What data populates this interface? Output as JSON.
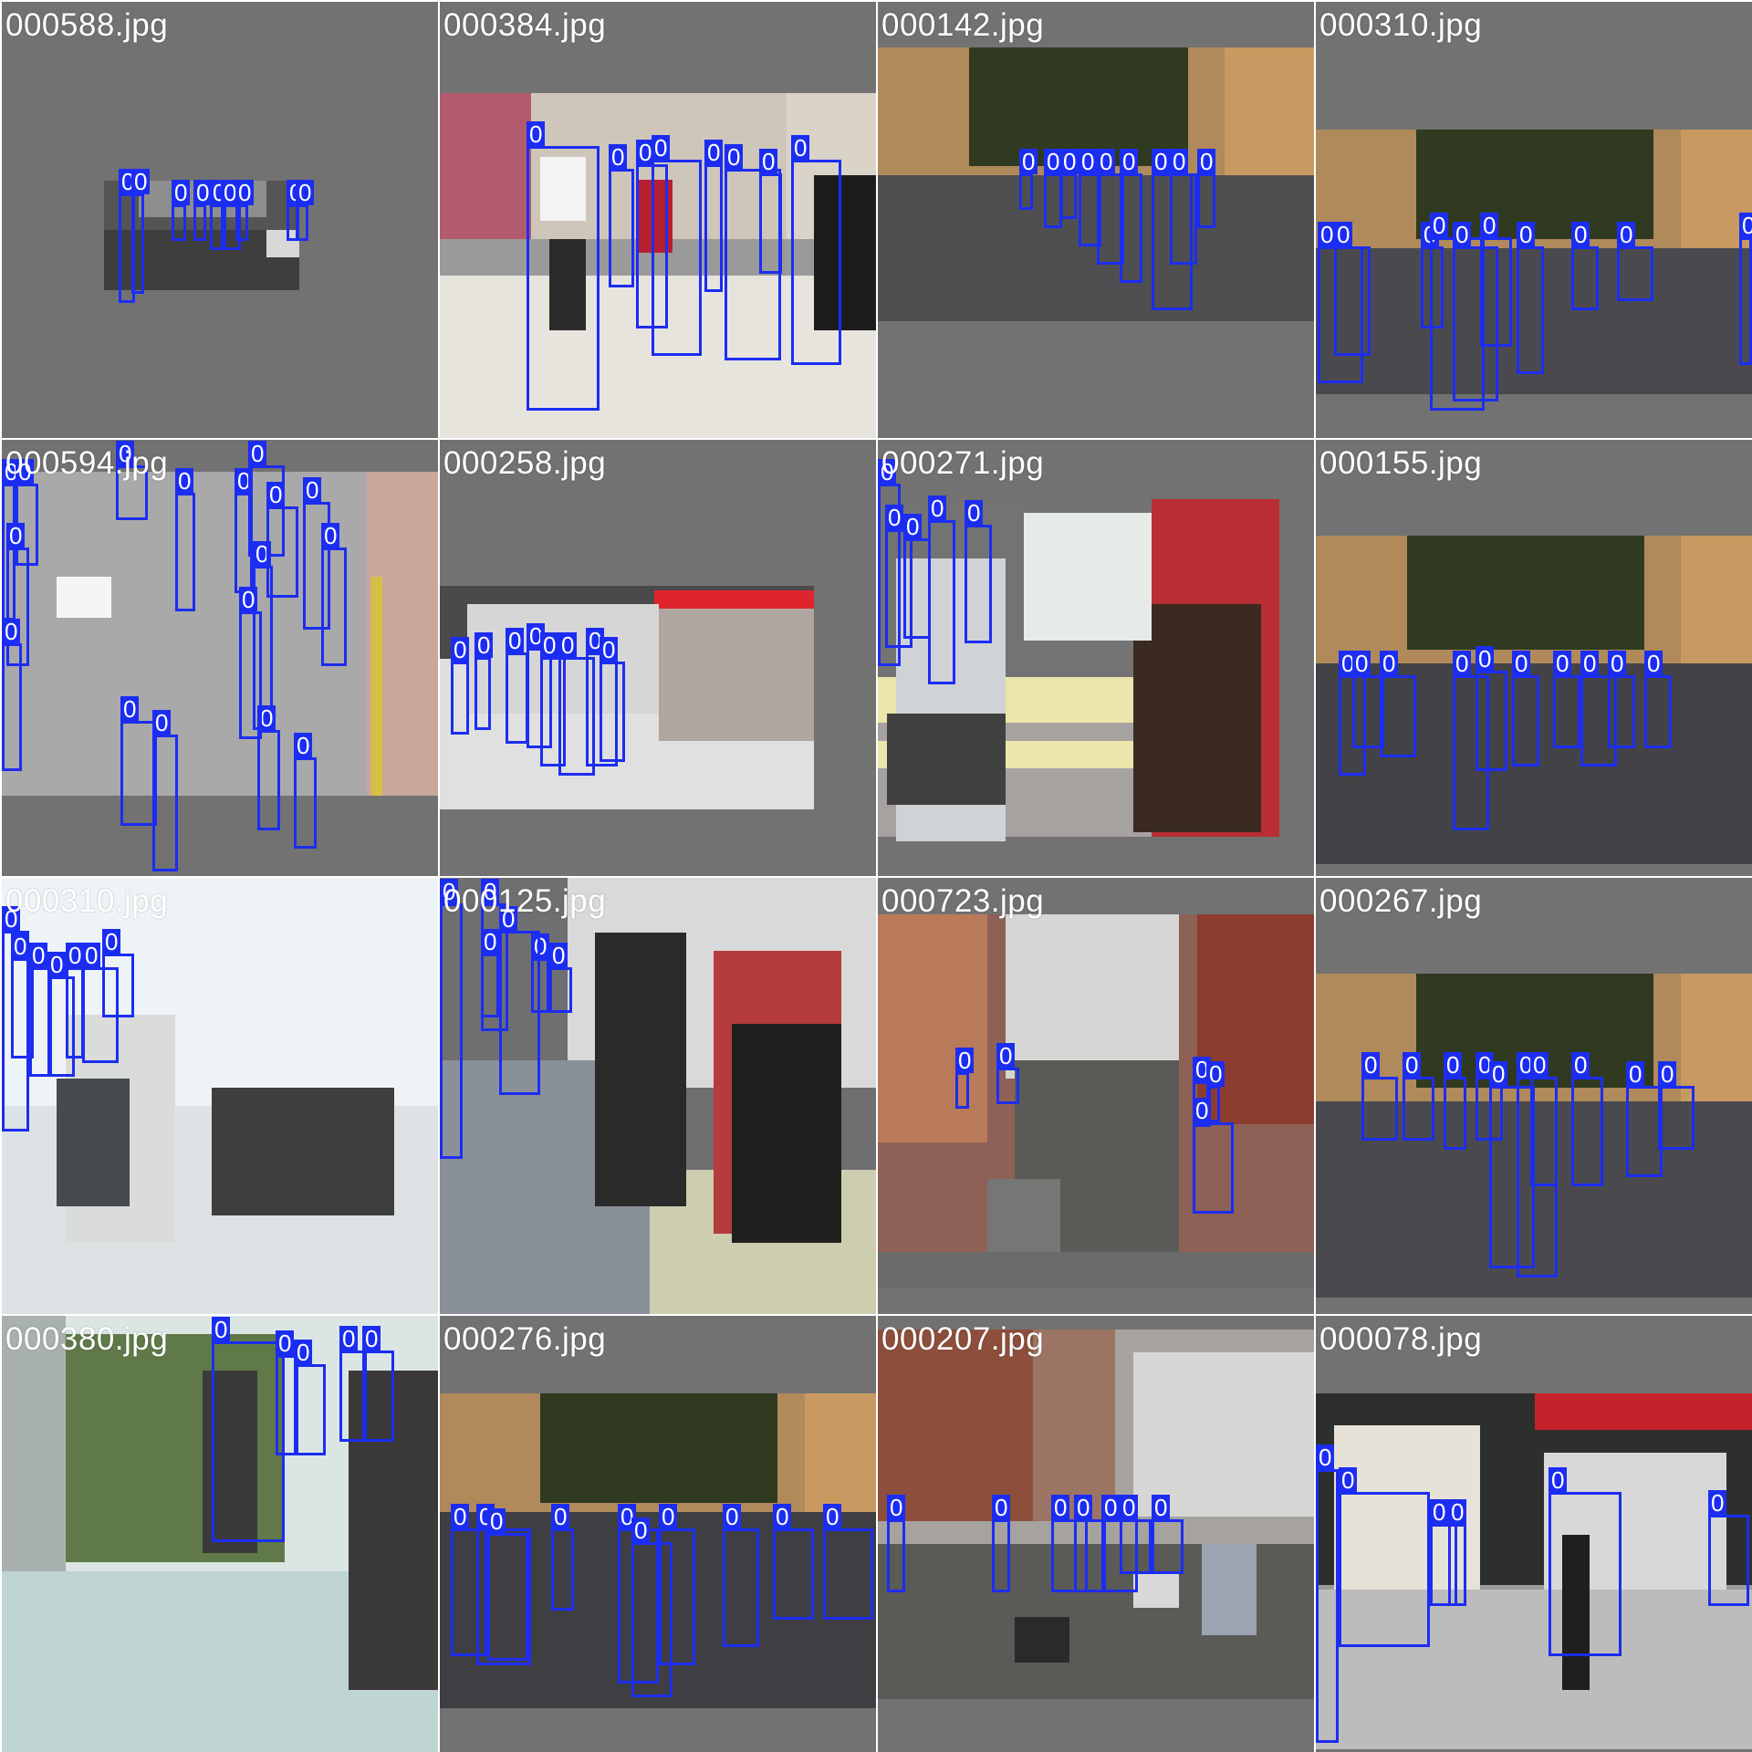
{
  "mosaic": {
    "box_color": "#1c2df2",
    "tiles": [
      {
        "filename": "000588.jpg",
        "scene": "dark mall corridor (small)",
        "bg": "#555555",
        "boxes": [
          {
            "label": "0"
          },
          {
            "label": "0"
          },
          {
            "label": "0"
          },
          {
            "label": "0"
          },
          {
            "label": "0"
          },
          {
            "label": "0"
          },
          {
            "label": "0"
          },
          {
            "label": "0"
          },
          {
            "label": "0"
          }
        ]
      },
      {
        "filename": "000384.jpg",
        "scene": "bright shopping mall",
        "bg": "#9a9a9a",
        "boxes": [
          {
            "label": "0"
          },
          {
            "label": "0"
          },
          {
            "label": "0"
          },
          {
            "label": "0"
          },
          {
            "label": "0"
          },
          {
            "label": "0"
          },
          {
            "label": "0"
          },
          {
            "label": "0"
          }
        ]
      },
      {
        "filename": "000142.jpg",
        "scene": "european plaza",
        "bg": "#6b6b6b",
        "boxes": [
          {
            "label": "0"
          },
          {
            "label": "0"
          },
          {
            "label": "0"
          },
          {
            "label": "0"
          },
          {
            "label": "0"
          },
          {
            "label": "0"
          },
          {
            "label": "0"
          },
          {
            "label": "0"
          },
          {
            "label": "0"
          }
        ]
      },
      {
        "filename": "000310.jpg",
        "scene": "european plaza",
        "bg": "#6b6b6b",
        "boxes": [
          {
            "label": "0"
          },
          {
            "label": "0"
          },
          {
            "label": "0"
          },
          {
            "label": "0"
          },
          {
            "label": "0"
          },
          {
            "label": "0"
          },
          {
            "label": "0"
          },
          {
            "label": "0"
          },
          {
            "label": "0"
          },
          {
            "label": "0"
          }
        ]
      },
      {
        "filename": "000594.jpg",
        "scene": "street from above",
        "bg": "#7a7a7a",
        "boxes": [
          {
            "label": "0"
          },
          {
            "label": "0"
          },
          {
            "label": "0"
          },
          {
            "label": "0"
          },
          {
            "label": "0"
          },
          {
            "label": "0"
          },
          {
            "label": "0"
          },
          {
            "label": "0"
          },
          {
            "label": "0"
          },
          {
            "label": "0"
          },
          {
            "label": "0"
          },
          {
            "label": "0"
          },
          {
            "label": "0"
          },
          {
            "label": "0"
          },
          {
            "label": "0"
          },
          {
            "label": "0"
          },
          {
            "label": "0"
          }
        ]
      },
      {
        "filename": "000258.jpg",
        "scene": "storefront",
        "bg": "#6e6e6e",
        "boxes": [
          {
            "label": "0"
          },
          {
            "label": "0"
          },
          {
            "label": "0"
          },
          {
            "label": "0"
          },
          {
            "label": "0"
          },
          {
            "label": "0"
          },
          {
            "label": "0"
          },
          {
            "label": "0"
          }
        ]
      },
      {
        "filename": "000271.jpg",
        "scene": "crosswalk close-up",
        "bg": "#737373",
        "boxes": [
          {
            "label": "0"
          },
          {
            "label": "0"
          },
          {
            "label": "0"
          },
          {
            "label": "0"
          },
          {
            "label": "0"
          }
        ]
      },
      {
        "filename": "000155.jpg",
        "scene": "european plaza",
        "bg": "#6b6b6b",
        "boxes": [
          {
            "label": "0"
          },
          {
            "label": "0"
          },
          {
            "label": "0"
          },
          {
            "label": "0"
          },
          {
            "label": "0"
          },
          {
            "label": "0"
          },
          {
            "label": "0"
          },
          {
            "label": "0"
          },
          {
            "label": "0"
          },
          {
            "label": "0"
          }
        ]
      },
      {
        "filename": "000310.jpg",
        "scene": "overexposed street",
        "bg": "#e7f0f2",
        "boxes": [
          {
            "label": "0"
          },
          {
            "label": "0"
          },
          {
            "label": "0"
          },
          {
            "label": "0"
          },
          {
            "label": "0"
          },
          {
            "label": "0"
          },
          {
            "label": "0"
          }
        ]
      },
      {
        "filename": "000125.jpg",
        "scene": "crosswalk close-up",
        "bg": "#8b8b8b",
        "boxes": [
          {
            "label": "0"
          },
          {
            "label": "0"
          },
          {
            "label": "0"
          },
          {
            "label": "0"
          },
          {
            "label": "0"
          },
          {
            "label": "0"
          }
        ]
      },
      {
        "filename": "000723.jpg",
        "scene": "bus lane street",
        "bg": "#6b6b6b",
        "boxes": [
          {
            "label": "0"
          },
          {
            "label": "0"
          },
          {
            "label": "0"
          },
          {
            "label": "0"
          },
          {
            "label": "0"
          }
        ]
      },
      {
        "filename": "000267.jpg",
        "scene": "european plaza",
        "bg": "#6b6b6b",
        "boxes": [
          {
            "label": "0"
          },
          {
            "label": "0"
          },
          {
            "label": "0"
          },
          {
            "label": "0"
          },
          {
            "label": "0"
          },
          {
            "label": "0"
          },
          {
            "label": "0"
          },
          {
            "label": "0"
          },
          {
            "label": "0"
          },
          {
            "label": "0"
          }
        ]
      },
      {
        "filename": "000380.jpg",
        "scene": "tree-lined pedestrian street",
        "bg": "#cfe1df",
        "boxes": [
          {
            "label": "0"
          },
          {
            "label": "0"
          },
          {
            "label": "0"
          },
          {
            "label": "0"
          },
          {
            "label": "0"
          }
        ]
      },
      {
        "filename": "000276.jpg",
        "scene": "european plaza",
        "bg": "#6b6b6b",
        "boxes": [
          {
            "label": "0"
          },
          {
            "label": "0"
          },
          {
            "label": "0"
          },
          {
            "label": "0"
          },
          {
            "label": "0"
          },
          {
            "label": "0"
          },
          {
            "label": "0"
          },
          {
            "label": "0"
          },
          {
            "label": "0"
          },
          {
            "label": "0"
          }
        ]
      },
      {
        "filename": "000207.jpg",
        "scene": "city street with taxi",
        "bg": "#6e6e6e",
        "boxes": [
          {
            "label": "0"
          },
          {
            "label": "0"
          },
          {
            "label": "0"
          },
          {
            "label": "0"
          },
          {
            "label": "0"
          },
          {
            "label": "0"
          },
          {
            "label": "0"
          }
        ]
      },
      {
        "filename": "000078.jpg",
        "scene": "storefront",
        "bg": "#6e6e6e",
        "boxes": [
          {
            "label": "0"
          },
          {
            "label": "0"
          },
          {
            "label": "0"
          },
          {
            "label": "0"
          },
          {
            "label": "0"
          },
          {
            "label": "0"
          }
        ]
      }
    ]
  }
}
